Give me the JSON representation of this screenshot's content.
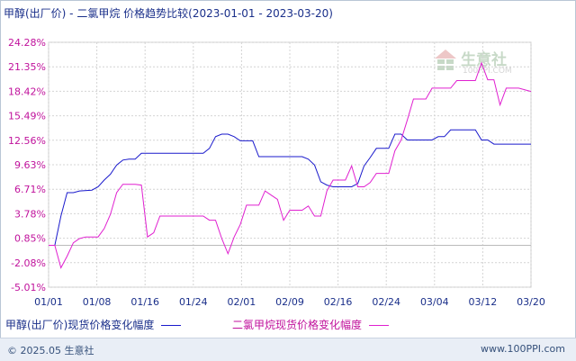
{
  "chart_data": {
    "type": "line",
    "title": "甲醇(出厂价) - 二氯甲烷 价格趋势比较(2023-01-01 - 2023-03-20)",
    "y_ticks": [
      "24.28%",
      "21.35%",
      "18.42%",
      "15.49%",
      "12.56%",
      "9.63%",
      "6.71%",
      "3.78%",
      "0.85%",
      "-2.08%",
      "-5.01%"
    ],
    "ylim": [
      -5.01,
      24.28
    ],
    "x_ticks": [
      "01/01",
      "01/08",
      "01/16",
      "01/24",
      "02/01",
      "02/09",
      "02/16",
      "02/24",
      "03/04",
      "03/12",
      "03/20"
    ],
    "xlim": [
      "2023-01-01",
      "2023-03-20"
    ],
    "grid": true,
    "legend_position": "bottom",
    "series": [
      {
        "name": "甲醇(出厂价)现货价格变化幅度",
        "color": "#1a1acc",
        "points": [
          [
            "2023-01-01",
            0.0
          ],
          [
            "2023-01-02",
            0.0
          ],
          [
            "2023-01-03",
            3.5
          ],
          [
            "2023-01-04",
            6.3
          ],
          [
            "2023-01-05",
            6.3
          ],
          [
            "2023-01-06",
            6.5
          ],
          [
            "2023-01-08",
            6.6
          ],
          [
            "2023-01-09",
            7.0
          ],
          [
            "2023-01-10",
            7.8
          ],
          [
            "2023-01-11",
            8.5
          ],
          [
            "2023-01-12",
            9.6
          ],
          [
            "2023-01-13",
            10.2
          ],
          [
            "2023-01-14",
            10.3
          ],
          [
            "2023-01-15",
            10.3
          ],
          [
            "2023-01-16",
            11.0
          ],
          [
            "2023-01-26",
            11.0
          ],
          [
            "2023-01-27",
            11.6
          ],
          [
            "2023-01-28",
            13.0
          ],
          [
            "2023-01-29",
            13.3
          ],
          [
            "2023-01-30",
            13.3
          ],
          [
            "2023-01-31",
            13.0
          ],
          [
            "2023-02-01",
            12.5
          ],
          [
            "2023-02-03",
            12.5
          ],
          [
            "2023-02-04",
            10.6
          ],
          [
            "2023-02-11",
            10.6
          ],
          [
            "2023-02-12",
            10.3
          ],
          [
            "2023-02-13",
            9.6
          ],
          [
            "2023-02-14",
            7.6
          ],
          [
            "2023-02-15",
            7.2
          ],
          [
            "2023-02-16",
            7.0
          ],
          [
            "2023-02-19",
            7.0
          ],
          [
            "2023-02-20",
            7.4
          ],
          [
            "2023-02-21",
            9.5
          ],
          [
            "2023-02-22",
            10.5
          ],
          [
            "2023-02-23",
            11.6
          ],
          [
            "2023-02-25",
            11.6
          ],
          [
            "2023-02-26",
            13.3
          ],
          [
            "2023-02-27",
            13.3
          ],
          [
            "2023-02-28",
            12.6
          ],
          [
            "2023-03-04",
            12.6
          ],
          [
            "2023-03-05",
            13.0
          ],
          [
            "2023-03-06",
            13.0
          ],
          [
            "2023-03-07",
            13.8
          ],
          [
            "2023-03-11",
            13.8
          ],
          [
            "2023-03-12",
            12.6
          ],
          [
            "2023-03-13",
            12.6
          ],
          [
            "2023-03-14",
            12.1
          ],
          [
            "2023-03-20",
            12.1
          ]
        ]
      },
      {
        "name": "二氯甲烷现货价格变化幅度",
        "color": "#e020d0",
        "points": [
          [
            "2023-01-01",
            0.0
          ],
          [
            "2023-01-02",
            0.0
          ],
          [
            "2023-01-03",
            -2.7
          ],
          [
            "2023-01-04",
            -1.3
          ],
          [
            "2023-01-05",
            0.3
          ],
          [
            "2023-01-06",
            0.8
          ],
          [
            "2023-01-07",
            1.0
          ],
          [
            "2023-01-09",
            1.0
          ],
          [
            "2023-01-10",
            2.0
          ],
          [
            "2023-01-11",
            3.7
          ],
          [
            "2023-01-12",
            6.3
          ],
          [
            "2023-01-13",
            7.3
          ],
          [
            "2023-01-15",
            7.3
          ],
          [
            "2023-01-16",
            7.2
          ],
          [
            "2023-01-17",
            1.0
          ],
          [
            "2023-01-18",
            1.5
          ],
          [
            "2023-01-19",
            3.5
          ],
          [
            "2023-01-26",
            3.5
          ],
          [
            "2023-01-27",
            3.0
          ],
          [
            "2023-01-28",
            3.0
          ],
          [
            "2023-01-29",
            0.8
          ],
          [
            "2023-01-30",
            -1.0
          ],
          [
            "2023-01-31",
            1.0
          ],
          [
            "2023-02-01",
            2.5
          ],
          [
            "2023-02-02",
            4.8
          ],
          [
            "2023-02-04",
            4.8
          ],
          [
            "2023-02-05",
            6.5
          ],
          [
            "2023-02-06",
            6.0
          ],
          [
            "2023-02-07",
            5.5
          ],
          [
            "2023-02-08",
            3.0
          ],
          [
            "2023-02-09",
            4.2
          ],
          [
            "2023-02-10",
            4.2
          ],
          [
            "2023-02-11",
            4.2
          ],
          [
            "2023-02-12",
            4.7
          ],
          [
            "2023-02-13",
            3.5
          ],
          [
            "2023-02-14",
            3.5
          ],
          [
            "2023-02-15",
            6.5
          ],
          [
            "2023-02-16",
            7.8
          ],
          [
            "2023-02-18",
            7.8
          ],
          [
            "2023-02-19",
            9.5
          ],
          [
            "2023-02-20",
            7.0
          ],
          [
            "2023-02-21",
            7.0
          ],
          [
            "2023-02-22",
            7.5
          ],
          [
            "2023-02-23",
            8.6
          ],
          [
            "2023-02-25",
            8.6
          ],
          [
            "2023-02-26",
            11.3
          ],
          [
            "2023-02-27",
            12.6
          ],
          [
            "2023-02-28",
            15.0
          ],
          [
            "2023-03-01",
            17.5
          ],
          [
            "2023-03-03",
            17.5
          ],
          [
            "2023-03-04",
            18.8
          ],
          [
            "2023-03-07",
            18.8
          ],
          [
            "2023-03-08",
            19.7
          ],
          [
            "2023-03-11",
            19.7
          ],
          [
            "2023-03-12",
            21.8
          ],
          [
            "2023-03-13",
            19.8
          ],
          [
            "2023-03-14",
            19.8
          ],
          [
            "2023-03-15",
            16.8
          ],
          [
            "2023-03-16",
            18.8
          ],
          [
            "2023-03-18",
            18.8
          ],
          [
            "2023-03-20",
            18.4
          ]
        ]
      }
    ]
  },
  "watermark": {
    "title": "生意社",
    "url": "100PPI.COM"
  },
  "footer": {
    "copyright": "© 2025.05 生意社",
    "site": "www.100PPI.com"
  }
}
